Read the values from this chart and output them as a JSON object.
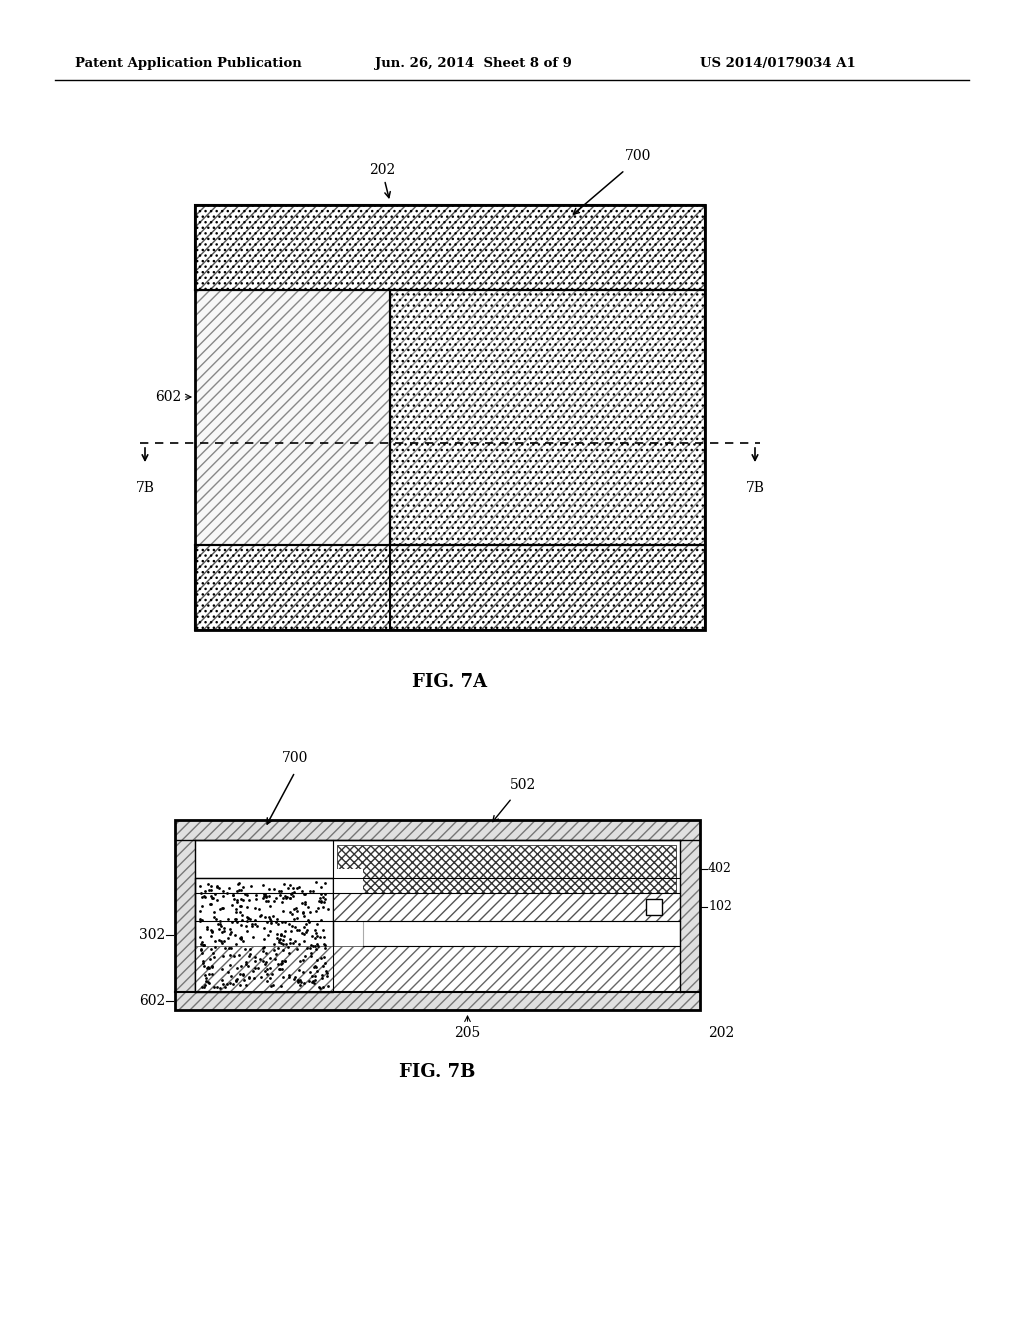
{
  "header_left": "Patent Application Publication",
  "header_mid": "Jun. 26, 2014  Sheet 8 of 9",
  "header_right": "US 2014/0179034 A1",
  "fig7a_label": "FIG. 7A",
  "fig7b_label": "FIG. 7B",
  "bg_color": "#ffffff",
  "line_color": "#000000"
}
